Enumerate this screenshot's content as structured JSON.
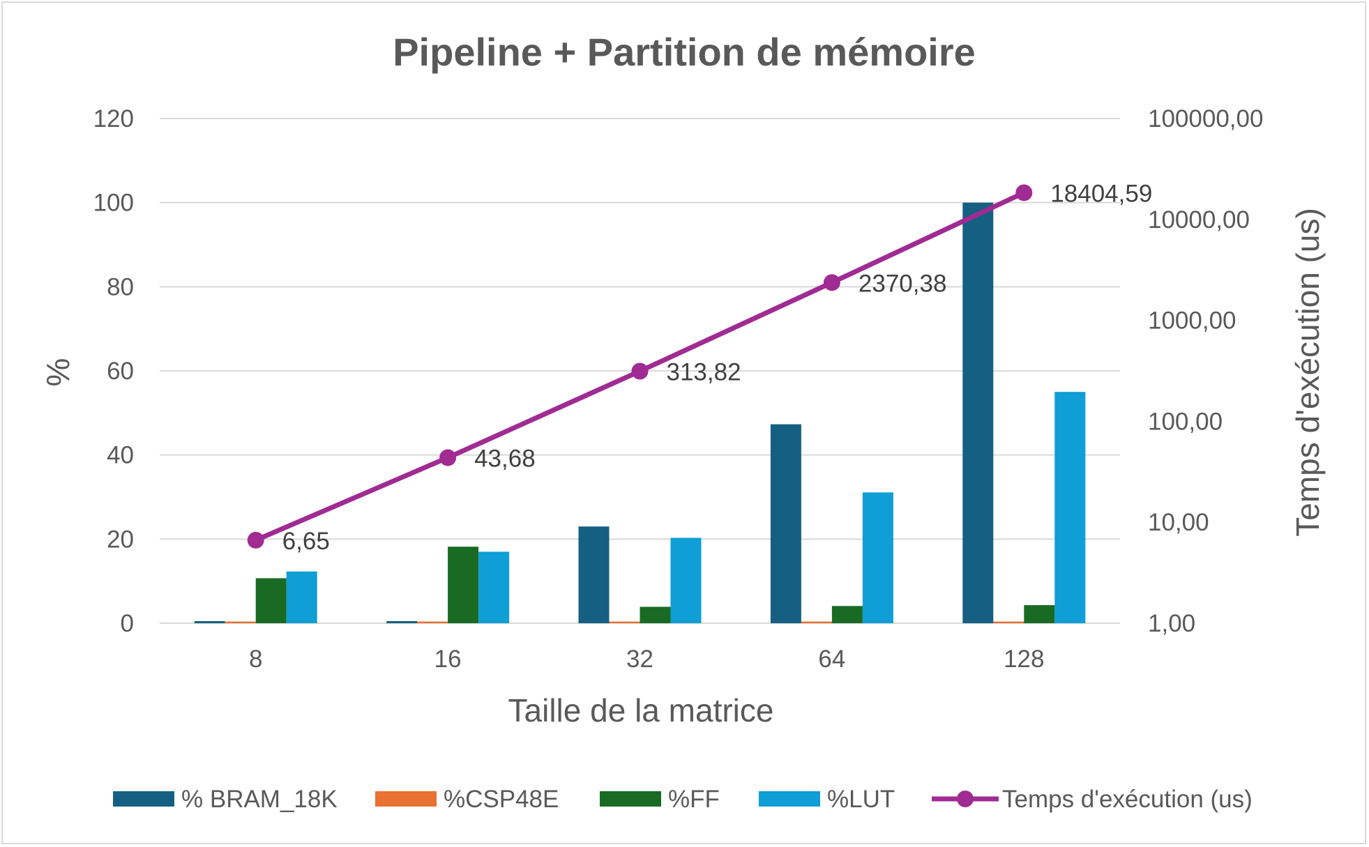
{
  "chart_data": {
    "type": "bar",
    "title": "Pipeline + Partition de mémoire",
    "xlabel": "Taille de la matrice",
    "ylabel": "%",
    "y2label": "Temps d'exécution (us)",
    "categories": [
      "8",
      "16",
      "32",
      "64",
      "128"
    ],
    "ylim": [
      0,
      120
    ],
    "y_ticks": [
      "0",
      "20",
      "40",
      "60",
      "80",
      "100",
      "120"
    ],
    "y2_scale": "log",
    "y2lim": [
      1,
      100000
    ],
    "y2_ticks": [
      "1,00",
      "10,00",
      "100,00",
      "1000,00",
      "10000,00",
      "100000,00"
    ],
    "grid": true,
    "legend_position": "bottom",
    "series": [
      {
        "name": "% BRAM_18K",
        "type": "bar",
        "axis": "left",
        "color": "#156082",
        "values": [
          0.5,
          0.5,
          23,
          47.3,
          100
        ]
      },
      {
        "name": "%CSP48E",
        "type": "bar",
        "axis": "left",
        "color": "#e97132",
        "values": [
          0.4,
          0.4,
          0.4,
          0.4,
          0.4
        ]
      },
      {
        "name": "%FF",
        "type": "bar",
        "axis": "left",
        "color": "#196b24",
        "values": [
          10.7,
          18.2,
          3.9,
          4.1,
          4.3
        ]
      },
      {
        "name": "%LUT",
        "type": "bar",
        "axis": "left",
        "color": "#0f9ed5",
        "values": [
          12.3,
          17,
          20.3,
          31.1,
          55
        ]
      },
      {
        "name": "Temps d'exécution (us)",
        "type": "line",
        "axis": "right",
        "color": "#a02b93",
        "values": [
          6.65,
          43.68,
          313.82,
          2370.38,
          18404.59
        ],
        "data_labels": [
          "6,65",
          "43,68",
          "313,82",
          "2370,38",
          "18404,59"
        ]
      }
    ]
  }
}
